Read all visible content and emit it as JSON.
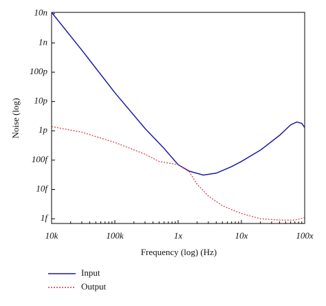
{
  "chart_data": {
    "type": "line",
    "x_label": "Frequency (log) (Hz)",
    "y_label": "Noise (log)",
    "x_log": true,
    "y_log": true,
    "xlim": [
      10000,
      100000000
    ],
    "ylim": [
      6.9e-16,
      1.1e-08
    ],
    "xticks": [
      {
        "value": 10000,
        "label": "10k"
      },
      {
        "value": 100000,
        "label": "100k"
      },
      {
        "value": 1000000,
        "label": "1x"
      },
      {
        "value": 10000000,
        "label": "10x"
      },
      {
        "value": 100000000,
        "label": "100x"
      }
    ],
    "yticks": [
      {
        "value": 1e-08,
        "label": "10n"
      },
      {
        "value": 1e-09,
        "label": "1n"
      },
      {
        "value": 1e-10,
        "label": "100p"
      },
      {
        "value": 1e-11,
        "label": "10p"
      },
      {
        "value": 1e-12,
        "label": "1p"
      },
      {
        "value": 1e-13,
        "label": "100f"
      },
      {
        "value": 1e-14,
        "label": "10f"
      },
      {
        "value": 1e-15,
        "label": "1f"
      }
    ],
    "legend": "below",
    "series": [
      {
        "name": "Input",
        "color": "#1a1aa8",
        "dash": "solid",
        "x": [
          10000,
          30000,
          100000,
          300000,
          600000,
          1000000,
          1500000,
          2500000,
          4000000,
          7000000,
          10000000,
          20000000,
          40000000,
          60000000,
          75000000,
          90000000,
          100000000
        ],
        "values": [
          1.1e-08,
          5.7e-10,
          2e-11,
          1.2e-12,
          2.5e-13,
          7e-14,
          4.2e-14,
          3.1e-14,
          3.6e-14,
          6e-14,
          9e-14,
          2.2e-13,
          7e-13,
          1.6e-12,
          2e-12,
          1.8e-12,
          1.3e-12
        ]
      },
      {
        "name": "Output",
        "color": "#d93030",
        "dash": "dotted",
        "x": [
          10000,
          30000,
          100000,
          300000,
          500000,
          1000000,
          1500000,
          2000000,
          3000000,
          5000000,
          10000000,
          20000000,
          40000000,
          70000000,
          100000000
        ],
        "values": [
          1.4e-12,
          9e-13,
          4e-13,
          1.6e-13,
          9e-14,
          7e-14,
          4e-14,
          1.5e-14,
          6e-15,
          2.8e-15,
          1.5e-15,
          1e-15,
          9e-16,
          9e-16,
          1.1e-15
        ]
      }
    ]
  }
}
